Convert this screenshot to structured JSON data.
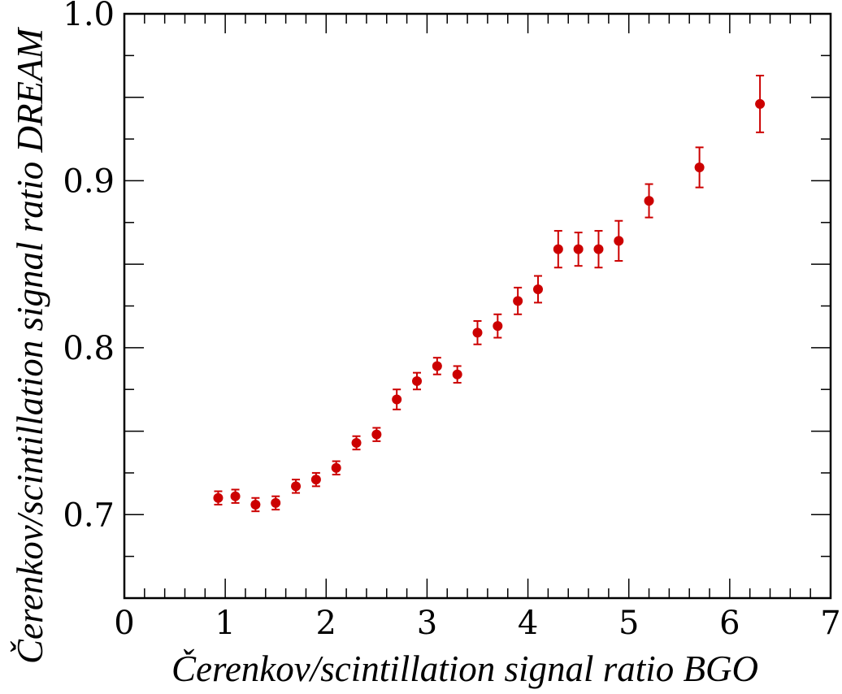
{
  "chart_data": {
    "type": "scatter",
    "xlabel": "Čerenkov/scintillation signal ratio BGO",
    "ylabel": "Čerenkov/scintillation signal ratio DREAM",
    "xlim": [
      0,
      7
    ],
    "ylim": [
      0.65,
      1.0
    ],
    "x_ticks": [
      "0",
      "1",
      "2",
      "3",
      "4",
      "5",
      "6",
      "7"
    ],
    "x_tick_values": [
      0,
      1,
      2,
      3,
      4,
      5,
      6,
      7
    ],
    "y_ticks": [
      "0.7",
      "0.8",
      "0.9",
      "1.0"
    ],
    "y_tick_values": [
      0.7,
      0.8,
      0.9,
      1.0
    ],
    "grid": false,
    "marker_color": "#cc0000",
    "series": [
      {
        "x": [
          0.93,
          1.1,
          1.3,
          1.5,
          1.7,
          1.9,
          2.1,
          2.3,
          2.5,
          2.7,
          2.9,
          3.1,
          3.3,
          3.5,
          3.7,
          3.9,
          4.1,
          4.3,
          4.5,
          4.7,
          4.9,
          5.2,
          5.7,
          6.3
        ],
        "y": [
          0.71,
          0.711,
          0.706,
          0.707,
          0.717,
          0.721,
          0.728,
          0.743,
          0.748,
          0.769,
          0.78,
          0.789,
          0.784,
          0.809,
          0.813,
          0.828,
          0.835,
          0.859,
          0.859,
          0.859,
          0.864,
          0.888,
          0.908,
          0.946
        ],
        "err": [
          0.004,
          0.004,
          0.004,
          0.004,
          0.004,
          0.004,
          0.004,
          0.004,
          0.004,
          0.006,
          0.005,
          0.005,
          0.005,
          0.007,
          0.007,
          0.008,
          0.008,
          0.011,
          0.01,
          0.011,
          0.012,
          0.01,
          0.012,
          0.017
        ]
      }
    ]
  }
}
